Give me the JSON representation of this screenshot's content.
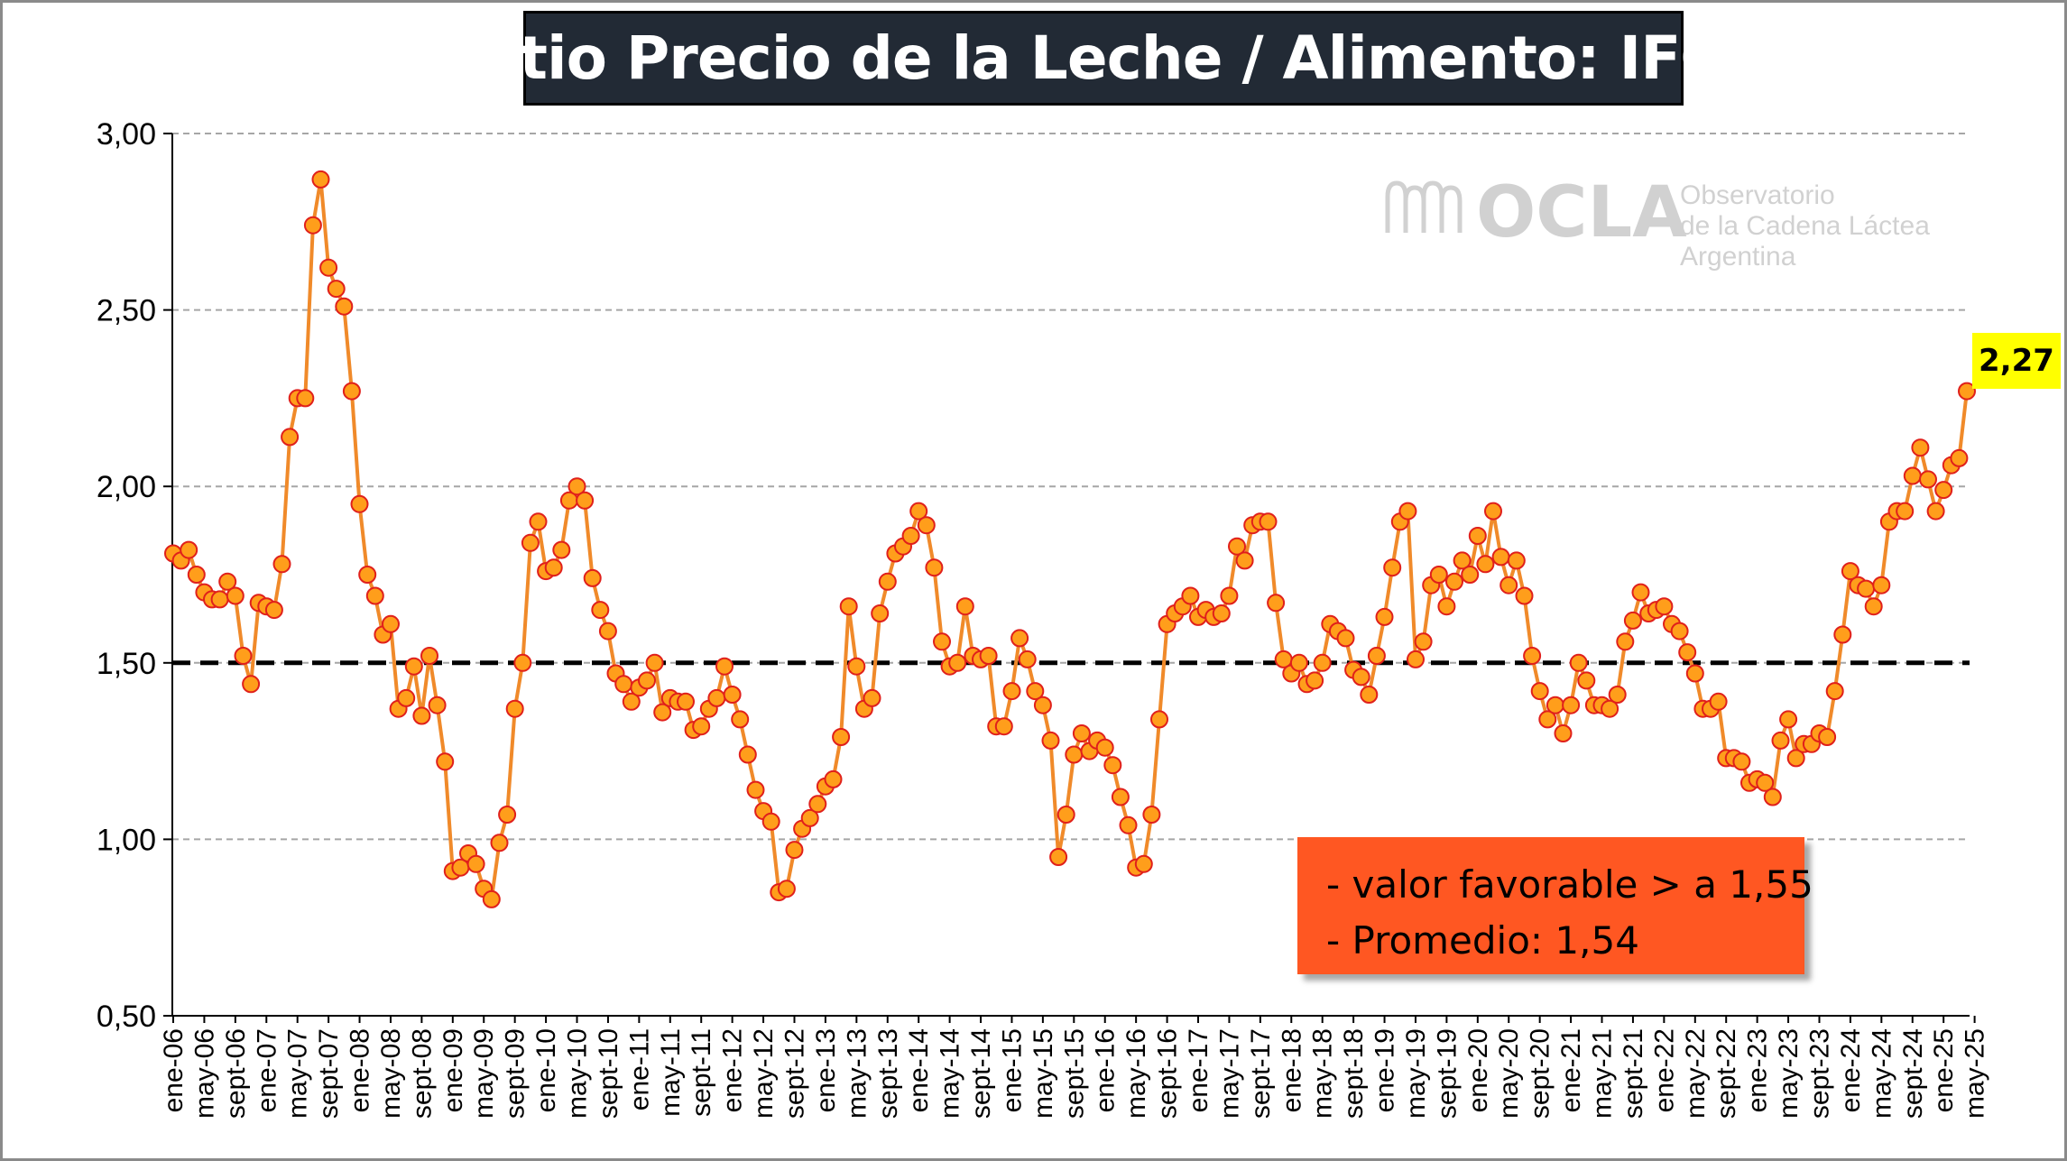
{
  "chart_data": {
    "type": "line",
    "title": "Ratio Precio de la Leche / Alimento: IFCN",
    "xlabel": "",
    "ylabel": "",
    "ylim": [
      0.5,
      3.0
    ],
    "yticks": [
      "0,50",
      "1,00",
      "1,50",
      "2,00",
      "2,50",
      "3,00"
    ],
    "reference_line": 1.5,
    "grid": true,
    "tick_labels": [
      "ene-06",
      "may-06",
      "sept-06",
      "ene-07",
      "may-07",
      "sept-07",
      "ene-08",
      "may-08",
      "sept-08",
      "ene-09",
      "may-09",
      "sept-09",
      "ene-10",
      "may-10",
      "sept-10",
      "ene-11",
      "may-11",
      "sept-11",
      "ene-12",
      "may-12",
      "sept-12",
      "ene-13",
      "may-13",
      "sept-13",
      "ene-14",
      "may-14",
      "sept-14",
      "ene-15",
      "may-15",
      "sept-15",
      "ene-16",
      "may-16",
      "sept-16",
      "ene-17",
      "may-17",
      "sept-17",
      "ene-18",
      "may-18",
      "sept-18",
      "ene-19",
      "may-19",
      "sept-19",
      "ene-20",
      "may-20",
      "sept-20",
      "ene-21",
      "may-21",
      "sept-21",
      "ene-22",
      "may-22",
      "sept-22",
      "ene-23",
      "may-23",
      "sept-23",
      "ene-24",
      "may-24",
      "sept-24",
      "ene-25",
      "may-25"
    ],
    "series": [
      {
        "values": [
          1.81,
          1.79,
          1.82,
          1.75,
          1.7,
          1.68,
          1.68,
          1.73,
          1.69,
          1.52,
          1.44,
          1.67,
          1.66,
          1.65,
          1.78,
          2.14,
          2.25,
          2.25,
          2.74,
          2.87,
          2.62,
          2.56,
          2.51,
          2.27,
          1.95,
          1.75,
          1.69,
          1.58,
          1.61,
          1.37,
          1.4,
          1.49,
          1.35,
          1.52,
          1.38,
          1.22,
          0.91,
          0.92,
          0.96,
          0.93,
          0.86,
          0.83,
          0.99,
          1.07,
          1.37,
          1.5,
          1.84,
          1.9,
          1.76,
          1.77,
          1.82,
          1.96,
          2.0,
          1.96,
          1.74,
          1.65,
          1.59,
          1.47,
          1.44,
          1.39,
          1.43,
          1.45,
          1.5,
          1.36,
          1.4,
          1.39,
          1.39,
          1.31,
          1.32,
          1.37,
          1.4,
          1.49,
          1.41,
          1.34,
          1.24,
          1.14,
          1.08,
          1.05,
          0.85,
          0.86,
          0.97,
          1.03,
          1.06,
          1.1,
          1.15,
          1.17,
          1.29,
          1.66,
          1.49,
          1.37,
          1.4,
          1.64,
          1.73,
          1.81,
          1.83,
          1.86,
          1.93,
          1.89,
          1.77,
          1.56,
          1.49,
          1.5,
          1.66,
          1.52,
          1.51,
          1.52,
          1.32,
          1.32,
          1.42,
          1.57,
          1.51,
          1.42,
          1.38,
          1.28,
          0.95,
          1.07,
          1.24,
          1.3,
          1.25,
          1.28,
          1.26,
          1.21,
          1.12,
          1.04,
          0.92,
          0.93,
          1.07,
          1.34,
          1.61,
          1.64,
          1.66,
          1.69,
          1.63,
          1.65,
          1.63,
          1.64,
          1.69,
          1.83,
          1.79,
          1.89,
          1.9,
          1.9,
          1.67,
          1.51,
          1.47,
          1.5,
          1.44,
          1.45,
          1.5,
          1.61,
          1.59,
          1.57,
          1.48,
          1.46,
          1.41,
          1.52,
          1.63,
          1.77,
          1.9,
          1.93,
          1.51,
          1.56,
          1.72,
          1.75,
          1.66,
          1.73,
          1.79,
          1.75,
          1.86,
          1.78,
          1.93,
          1.8,
          1.72,
          1.79,
          1.69,
          1.52,
          1.42,
          1.34,
          1.38,
          1.3,
          1.38,
          1.5,
          1.45,
          1.38,
          1.38,
          1.37,
          1.41,
          1.56,
          1.62,
          1.7,
          1.64,
          1.65,
          1.66,
          1.61,
          1.59,
          1.53,
          1.47,
          1.37,
          1.37,
          1.39,
          1.23,
          1.23,
          1.22,
          1.16,
          1.17,
          1.16,
          1.12,
          1.28,
          1.34,
          1.23,
          1.27,
          1.27,
          1.3,
          1.29,
          1.42,
          1.58,
          1.76,
          1.72,
          1.71,
          1.66,
          1.72,
          1.9,
          1.93,
          1.93,
          2.03,
          2.11,
          2.02,
          1.93,
          1.99,
          2.06,
          2.08,
          2.27
        ]
      }
    ],
    "last_value_label": "2,27",
    "annotations": [
      "- valor favorable > a 1,55",
      "- Promedio: 1,54"
    ]
  },
  "logo": {
    "name": "OCLA",
    "line1": "Observatorio",
    "line2": "de la Cadena Láctea",
    "line3": "Argentina"
  },
  "colors": {
    "line": "#f08a2a",
    "marker_fill": "#ff9e1b",
    "marker_stroke": "#e0201b",
    "title_bg": "#222a35",
    "annotation_bg": "#ff5722",
    "last_label_bg": "#ffff00"
  }
}
